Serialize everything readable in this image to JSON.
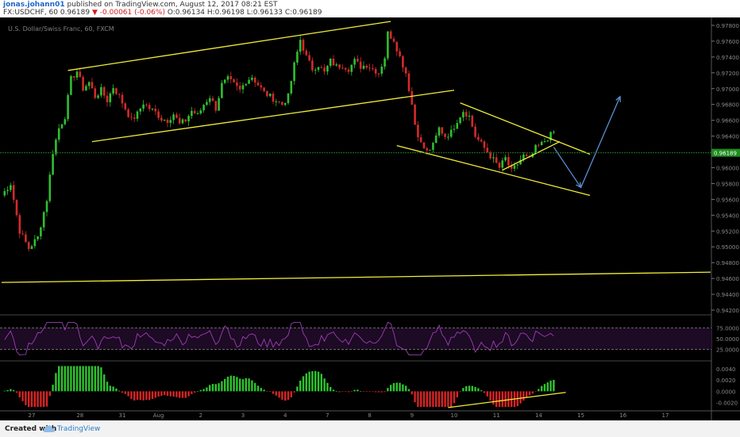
{
  "header": {
    "author": "jonas.johann01",
    "published": "published on TradingView.com, August 12, 2017 08:21 EST",
    "symbol": "FX:USDCHF, 60",
    "last": "0.96189",
    "change": "-0.00061 (-0.06%)",
    "ohlc": "O:0.96134 H:0.96198 L:0.96133 C:0.96189"
  },
  "chart_data": {
    "type": "candlestick",
    "title": "U.S. Dollar/Swiss Franc, 60, FXCM",
    "price_axis_ticks": [
      "0.97800",
      "0.97600",
      "0.97400",
      "0.97200",
      "0.97000",
      "0.96800",
      "0.96600",
      "0.96400",
      "0.96200",
      "0.96000",
      "0.95800",
      "0.95600",
      "0.95400",
      "0.95200",
      "0.95000",
      "0.94800",
      "0.94600",
      "0.94400",
      "0.94200"
    ],
    "ylim": [
      0.9415,
      0.9788
    ],
    "current_price": "0.96189",
    "x_tick_labels": [
      "27",
      "28",
      "31",
      "Aug",
      "2",
      "3",
      "4",
      "7",
      "8",
      "9",
      "10",
      "11",
      "14",
      "15",
      "16",
      "17"
    ],
    "x_tick_index": [
      10,
      26,
      40,
      52,
      66,
      80,
      94,
      108,
      122,
      136,
      150,
      164,
      178,
      192,
      206,
      220
    ],
    "price_path": [
      [
        0,
        0.9565
      ],
      [
        3,
        0.958
      ],
      [
        6,
        0.952
      ],
      [
        9,
        0.9498
      ],
      [
        12,
        0.9512
      ],
      [
        15,
        0.956
      ],
      [
        17,
        0.962
      ],
      [
        19,
        0.965
      ],
      [
        21,
        0.9665
      ],
      [
        23,
        0.9712
      ],
      [
        25,
        0.9722
      ],
      [
        27,
        0.97
      ],
      [
        29,
        0.9708
      ],
      [
        31,
        0.969
      ],
      [
        33,
        0.9698
      ],
      [
        35,
        0.9685
      ],
      [
        37,
        0.9702
      ],
      [
        39,
        0.969
      ],
      [
        41,
        0.9675
      ],
      [
        43,
        0.966
      ],
      [
        45,
        0.9668
      ],
      [
        47,
        0.9682
      ],
      [
        49,
        0.9675
      ],
      [
        51,
        0.967
      ],
      [
        53,
        0.9662
      ],
      [
        55,
        0.966
      ],
      [
        57,
        0.9668
      ],
      [
        59,
        0.9655
      ],
      [
        61,
        0.966
      ],
      [
        63,
        0.9672
      ],
      [
        65,
        0.9666
      ],
      [
        67,
        0.968
      ],
      [
        69,
        0.969
      ],
      [
        71,
        0.9675
      ],
      [
        73,
        0.9705
      ],
      [
        75,
        0.9712
      ],
      [
        77,
        0.9705
      ],
      [
        79,
        0.9698
      ],
      [
        81,
        0.971
      ],
      [
        83,
        0.9715
      ],
      [
        85,
        0.9705
      ],
      [
        87,
        0.9695
      ],
      [
        89,
        0.969
      ],
      [
        91,
        0.9685
      ],
      [
        93,
        0.968
      ],
      [
        95,
        0.969
      ],
      [
        97,
        0.973
      ],
      [
        99,
        0.9762
      ],
      [
        101,
        0.974
      ],
      [
        103,
        0.9725
      ],
      [
        105,
        0.973
      ],
      [
        107,
        0.972
      ],
      [
        109,
        0.9735
      ],
      [
        111,
        0.9728
      ],
      [
        113,
        0.973
      ],
      [
        115,
        0.9725
      ],
      [
        117,
        0.9735
      ],
      [
        119,
        0.9728
      ],
      [
        121,
        0.973
      ],
      [
        123,
        0.9725
      ],
      [
        125,
        0.972
      ],
      [
        127,
        0.974
      ],
      [
        128,
        0.977
      ],
      [
        130,
        0.9762
      ],
      [
        132,
        0.974
      ],
      [
        134,
        0.972
      ],
      [
        135,
        0.97
      ],
      [
        136,
        0.968
      ],
      [
        137,
        0.9655
      ],
      [
        139,
        0.963
      ],
      [
        141,
        0.962
      ],
      [
        143,
        0.9628
      ],
      [
        145,
        0.965
      ],
      [
        147,
        0.964
      ],
      [
        149,
        0.9645
      ],
      [
        151,
        0.966
      ],
      [
        153,
        0.9672
      ],
      [
        155,
        0.9665
      ],
      [
        157,
        0.964
      ],
      [
        159,
        0.963
      ],
      [
        161,
        0.962
      ],
      [
        163,
        0.961
      ],
      [
        165,
        0.96
      ],
      [
        167,
        0.9612
      ],
      [
        169,
        0.9595
      ],
      [
        171,
        0.9605
      ],
      [
        173,
        0.9615
      ],
      [
        175,
        0.961
      ],
      [
        177,
        0.9625
      ],
      [
        179,
        0.963
      ],
      [
        181,
        0.9638
      ],
      [
        183,
        0.9645
      ]
    ],
    "drawings": [
      {
        "name": "upper-channel-top",
        "points": [
          [
            22,
            0.9723
          ],
          [
            129,
            0.9785
          ]
        ]
      },
      {
        "name": "upper-channel-bottom",
        "points": [
          [
            30,
            0.9633
          ],
          [
            150,
            0.9698
          ]
        ]
      },
      {
        "name": "lower-channel-top",
        "points": [
          [
            152,
            0.9682
          ],
          [
            195,
            0.9617
          ]
        ]
      },
      {
        "name": "lower-channel-bottom",
        "points": [
          [
            131,
            0.9628
          ],
          [
            195,
            0.9565
          ]
        ]
      },
      {
        "name": "wedge-bottom-line",
        "points": [
          [
            166,
            0.9597
          ],
          [
            185,
            0.9633
          ]
        ]
      },
      {
        "name": "long-support-line",
        "points": [
          [
            0,
            0.9455
          ],
          [
            235,
            0.9468
          ]
        ]
      }
    ],
    "projection": [
      [
        183,
        0.9626
      ],
      [
        192,
        0.9575
      ],
      [
        205,
        0.969
      ]
    ],
    "rsi": {
      "levels": [
        "75.0000",
        "50.0000",
        "25.0000"
      ],
      "ylim": [
        0,
        100
      ]
    },
    "macd": {
      "levels": [
        "0.0040",
        "0.0020",
        "0.0000",
        "-0.0020"
      ],
      "ylim": [
        -0.0032,
        0.005
      ]
    }
  },
  "footer": {
    "created_with": "Created with",
    "brand": "TradingView"
  }
}
